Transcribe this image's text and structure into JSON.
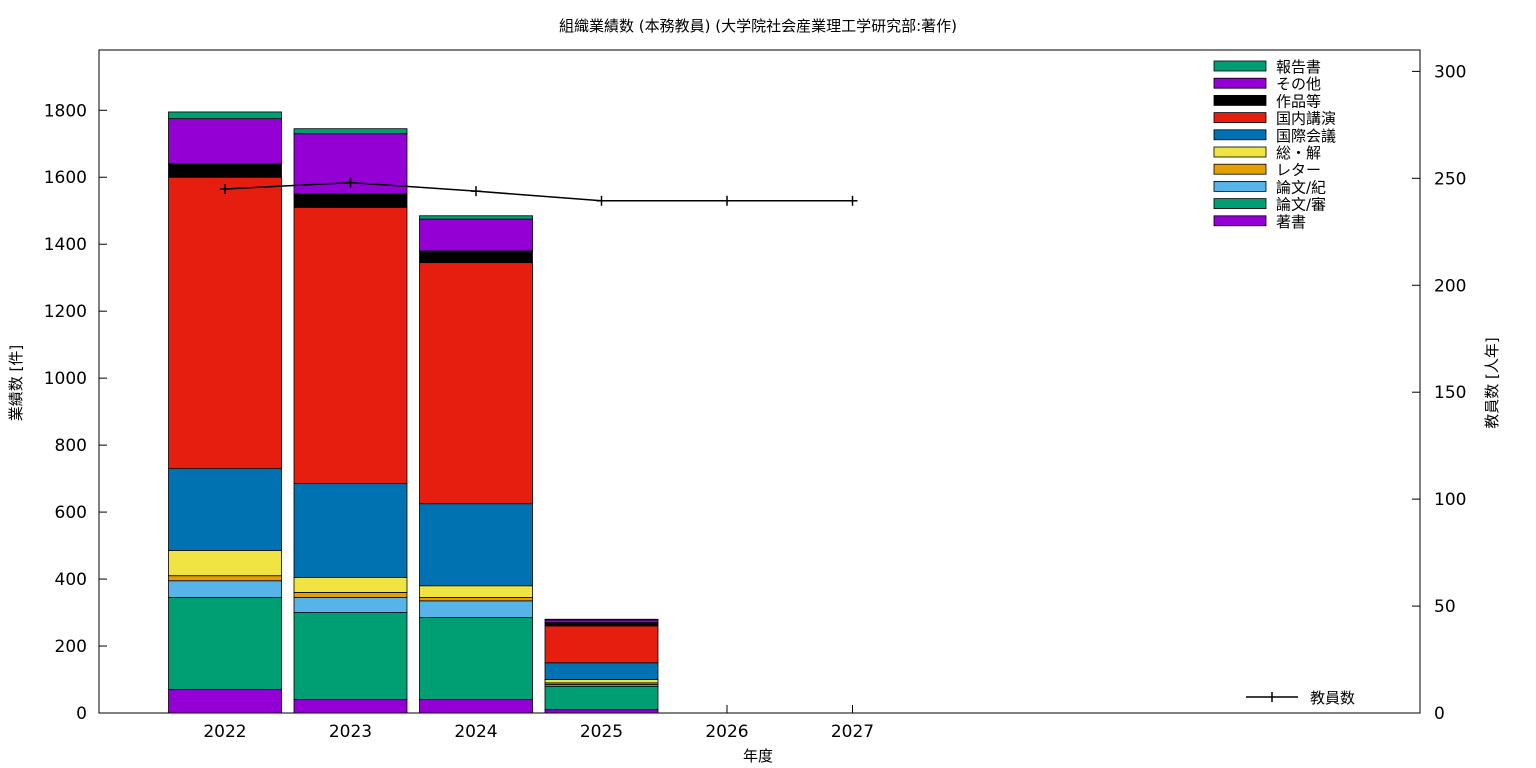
{
  "chart_data": {
    "type": "bar",
    "title": "組織業績数 (本務教員) (大学院社会産業理工学研究部:著作)",
    "xlabel": "年度",
    "ylabel": "業績数 [件]",
    "y2label": "教員数 [人年]",
    "categories": [
      "2022",
      "2023",
      "2024",
      "2025",
      "2026",
      "2027"
    ],
    "ylim": [
      0,
      1980
    ],
    "yticks": [
      0,
      200,
      400,
      600,
      800,
      1000,
      1200,
      1400,
      1600,
      1800
    ],
    "y2lim": [
      0,
      310
    ],
    "y2ticks": [
      0,
      50,
      100,
      150,
      200,
      250,
      300
    ],
    "legend_position": "top-right",
    "stacked": true,
    "series": [
      {
        "name": "著書",
        "color": "#9400d3",
        "values": [
          70,
          40,
          40,
          10,
          0,
          0
        ]
      },
      {
        "name": "論文/審",
        "color": "#009e73",
        "values": [
          275,
          260,
          245,
          70,
          0,
          0
        ]
      },
      {
        "name": "論文/紀",
        "color": "#56b4e9",
        "values": [
          50,
          45,
          50,
          5,
          0,
          0
        ]
      },
      {
        "name": "レター",
        "color": "#e69f00",
        "values": [
          15,
          15,
          10,
          5,
          0,
          0
        ]
      },
      {
        "name": "総・解",
        "color": "#f0e442",
        "values": [
          75,
          45,
          35,
          10,
          0,
          0
        ]
      },
      {
        "name": "国際会議",
        "color": "#0072b2",
        "values": [
          245,
          280,
          245,
          50,
          0,
          0
        ]
      },
      {
        "name": "国内講演",
        "color": "#e51e10",
        "values": [
          870,
          825,
          720,
          110,
          0,
          0
        ]
      },
      {
        "name": "作品等",
        "color": "#000000",
        "values": [
          40,
          40,
          35,
          10,
          0,
          0
        ]
      },
      {
        "name": "その他",
        "color": "#9400d3",
        "values": [
          135,
          180,
          95,
          8,
          0,
          0
        ]
      },
      {
        "name": "報告書",
        "color": "#009e73",
        "values": [
          20,
          15,
          10,
          2,
          0,
          0
        ]
      }
    ],
    "line_series": {
      "name": "教員数",
      "axis": "right",
      "color": "#000000",
      "x": [
        "2022",
        "2023",
        "2024",
        "2025",
        "2026",
        "2027"
      ],
      "values": [
        245,
        248,
        244,
        239.5,
        239.5,
        239.5
      ]
    }
  }
}
